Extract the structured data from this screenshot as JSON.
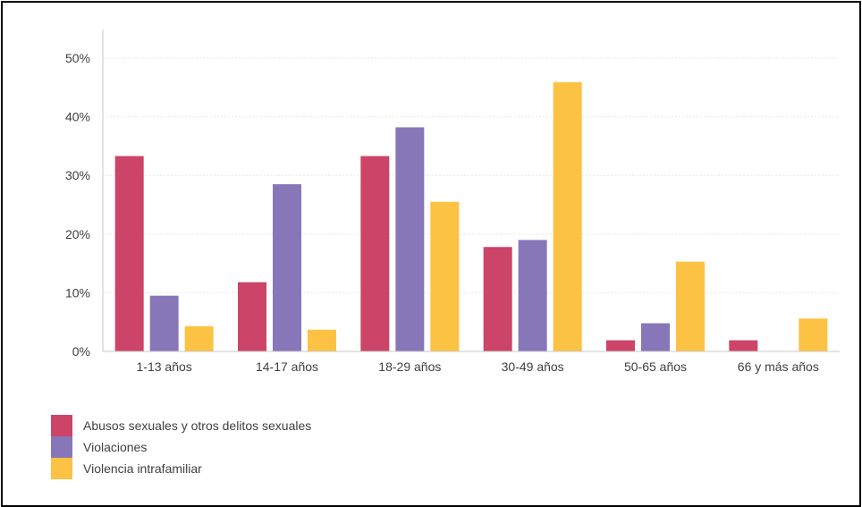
{
  "chart_data": {
    "type": "bar",
    "categories": [
      "1-13 años",
      "14-17 años",
      "18-29 años",
      "30-49 años",
      "50-65 años",
      "66 y más años"
    ],
    "series": [
      {
        "name": "Abusos sexuales y otros delitos sexuales",
        "color": "#cc4468",
        "values": [
          33.3,
          11.8,
          33.3,
          17.8,
          1.9,
          1.9
        ]
      },
      {
        "name": "Violaciones",
        "color": "#8877b8",
        "values": [
          9.5,
          28.5,
          38.2,
          19.0,
          4.8,
          0
        ]
      },
      {
        "name": "Violencia intrafamiliar",
        "color": "#fcc244",
        "values": [
          4.3,
          3.7,
          25.5,
          45.9,
          15.3,
          5.6
        ]
      }
    ],
    "yticks": [
      "0%",
      "10%",
      "20%",
      "30%",
      "40%",
      "50%"
    ],
    "ylim": [
      0,
      50
    ],
    "grid": true,
    "legend_position": "bottom-left",
    "title": "",
    "xlabel": "",
    "ylabel": ""
  }
}
